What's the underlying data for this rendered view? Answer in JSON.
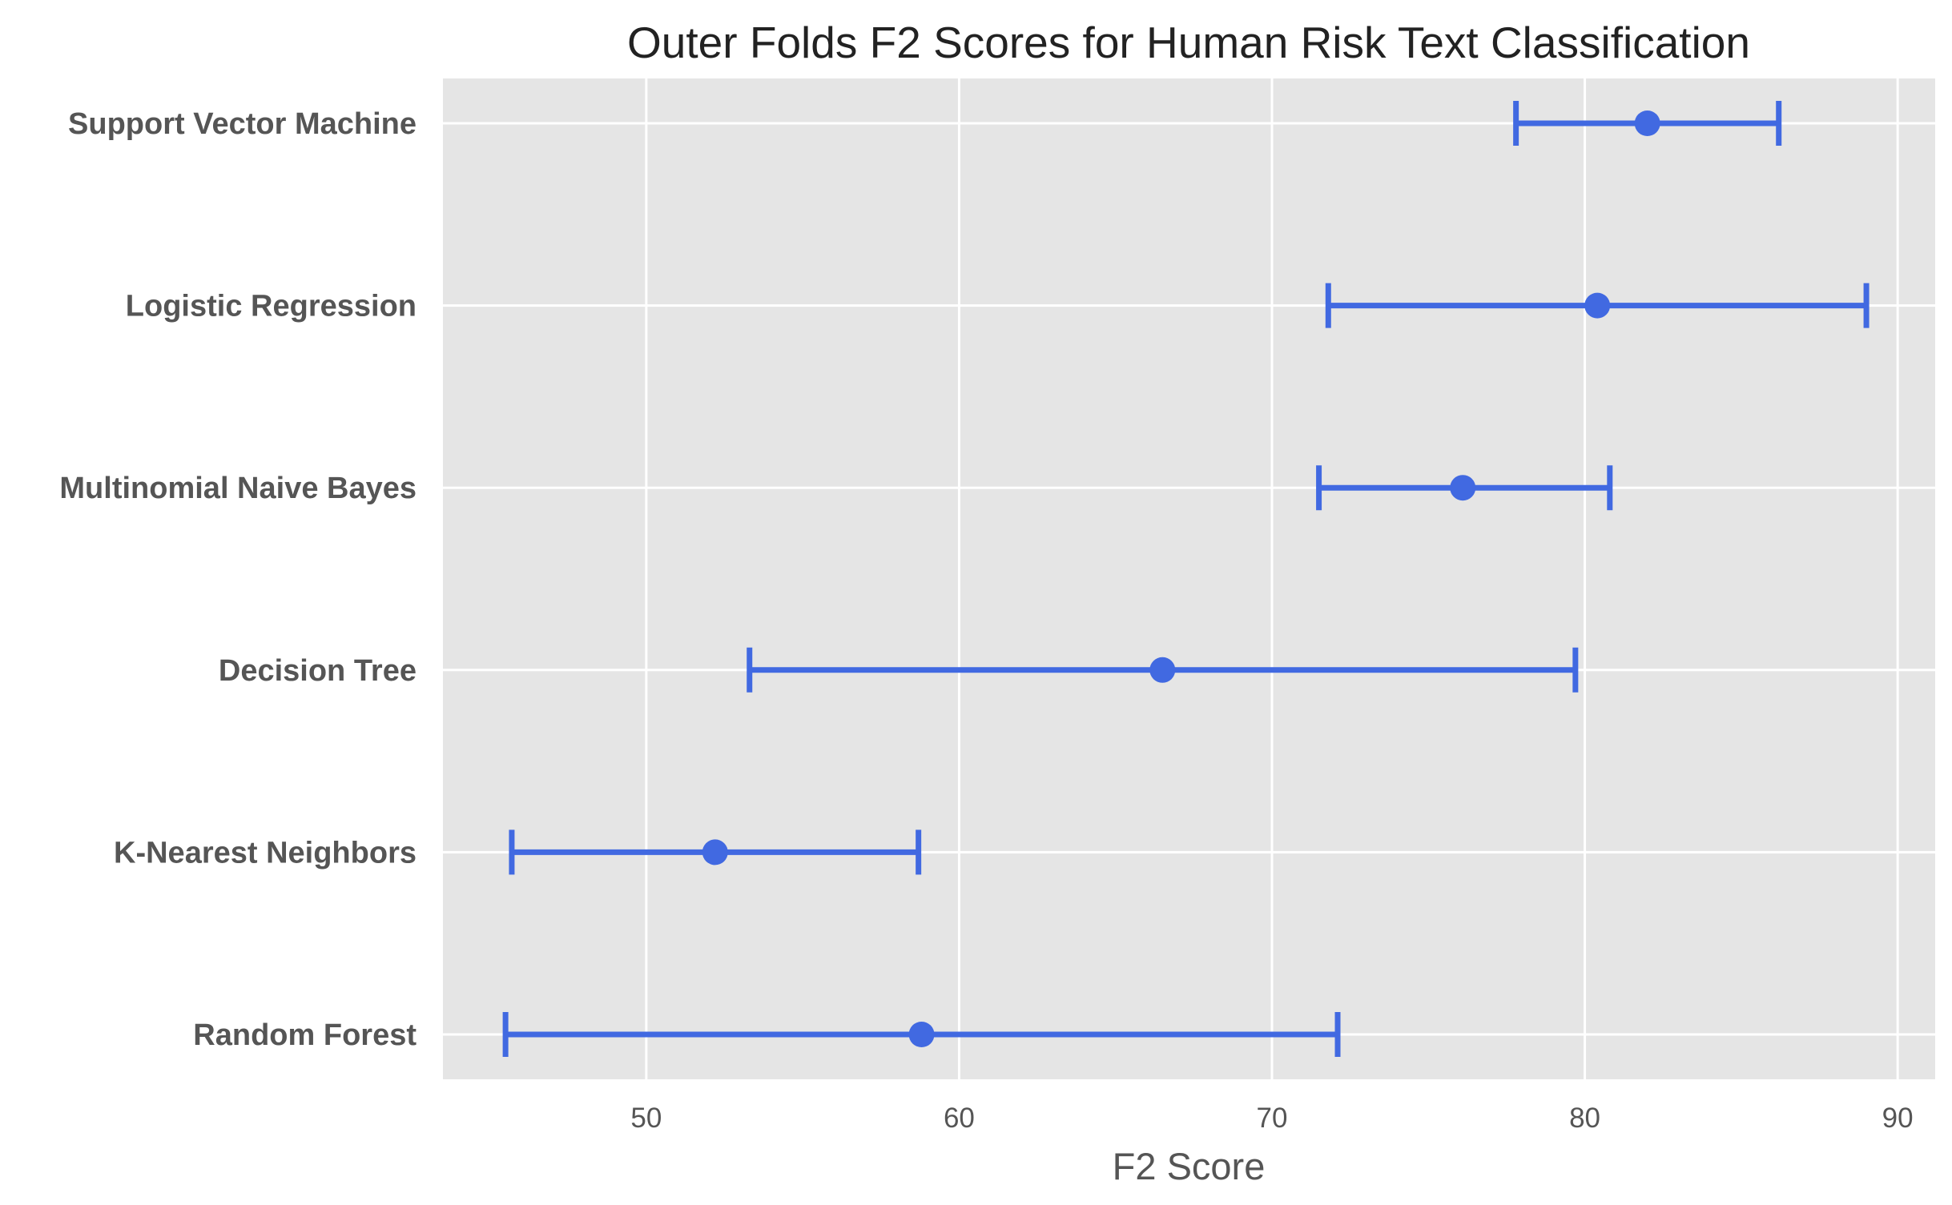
{
  "chart_data": {
    "type": "scatter",
    "title": "Outer Folds F2 Scores for Human Risk Text Classification",
    "xlabel": "F2 Score",
    "ylabel": "",
    "xlim": [
      43.5,
      91.2
    ],
    "xticks": [
      50,
      60,
      70,
      80,
      90
    ],
    "grid": true,
    "background_color": "#e5e5e5",
    "grid_color": "#ffffff",
    "series_color": "#4169e1",
    "categories": [
      "Support Vector Machine",
      "Logistic Regression",
      "Multinomial Naive Bayes",
      "Decision Tree",
      "K-Nearest Neighbors",
      "Random Forest"
    ],
    "means": [
      82.0,
      80.4,
      76.1,
      66.5,
      52.2,
      58.8
    ],
    "lower": [
      77.8,
      71.8,
      71.5,
      53.3,
      45.7,
      45.5
    ],
    "upper": [
      86.2,
      89.0,
      80.8,
      79.7,
      58.7,
      72.1
    ]
  }
}
